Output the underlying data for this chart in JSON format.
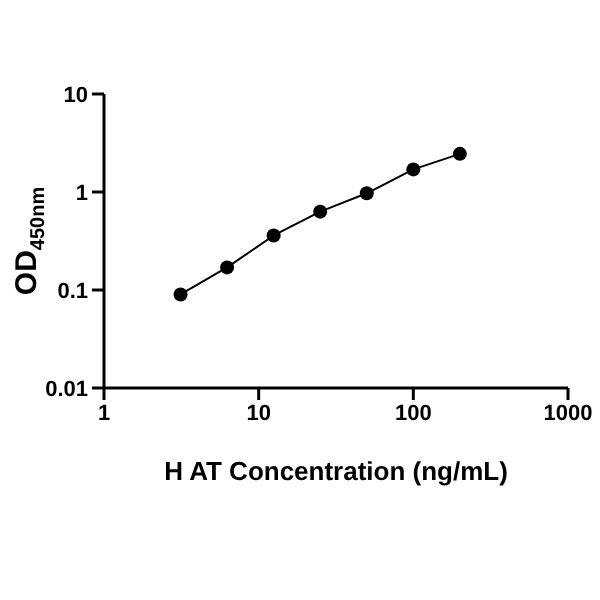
{
  "chart_data": {
    "type": "line",
    "xlabel": "H AT Concentration (ng/mL)",
    "ylabel": "OD$_{450nm}$",
    "log": "xy",
    "xlim": [
      1,
      1000
    ],
    "xticks": [
      1,
      10,
      100,
      1000
    ],
    "ylim": [
      0.01,
      10
    ],
    "yticks": [
      0.01,
      0.1,
      1,
      10
    ],
    "x": [
      3.125,
      6.25,
      12.5,
      25,
      50,
      100,
      200
    ],
    "series": [
      {
        "color": "#000000",
        "values": [
          0.09,
          0.17,
          0.36,
          0.63,
          0.97,
          1.7,
          2.45
        ]
      }
    ],
    "marker": "circle",
    "line_style": "solid",
    "grid": false,
    "legend": false
  }
}
